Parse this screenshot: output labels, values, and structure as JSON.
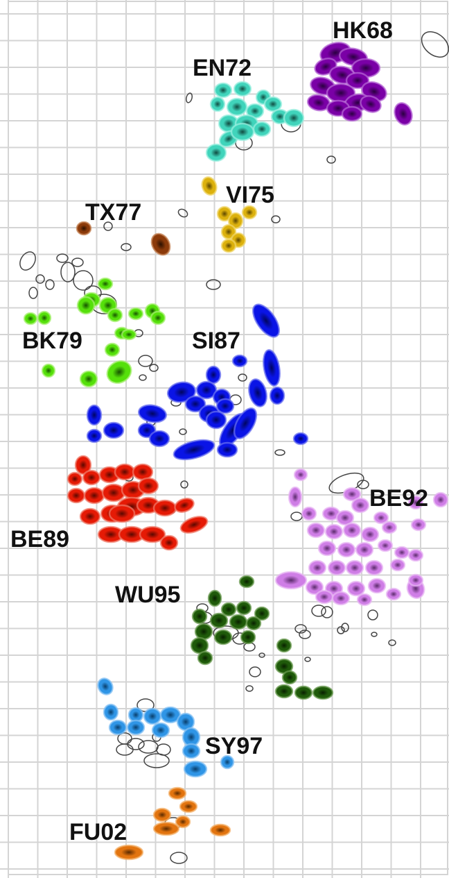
{
  "clusters": [
    {
      "key": "hk68",
      "label": "HK68",
      "color": "#7a00a6",
      "dark": "#2a0040",
      "halo": "#b66ad6"
    },
    {
      "key": "en72",
      "label": "EN72",
      "color": "#40d4bb",
      "dark": "#0f4a40",
      "halo": "#9befe0"
    },
    {
      "key": "vi75",
      "label": "VI75",
      "color": "#dcb10d",
      "dark": "#5a4500",
      "halo": "#efd66a"
    },
    {
      "key": "tx77",
      "label": "TX77",
      "color": "#8b3a0a",
      "dark": "#2b1000",
      "halo": "#c07a4a"
    },
    {
      "key": "bk79",
      "label": "BK79",
      "color": "#55e00a",
      "dark": "#155000",
      "halo": "#a6f070"
    },
    {
      "key": "si87",
      "label": "SI87",
      "color": "#0a14e6",
      "dark": "#000560",
      "halo": "#6a70f0"
    },
    {
      "key": "be89",
      "label": "BE89",
      "color": "#e51a05",
      "dark": "#5a0800",
      "halo": "#f07a6a"
    },
    {
      "key": "be92",
      "label": "BE92",
      "color": "#cf7ee6",
      "dark": "#5a2a6a",
      "halo": "#e8b8f3"
    },
    {
      "key": "wu95",
      "label": "WU95",
      "color": "#1f5a0a",
      "dark": "#081f00",
      "halo": "#6a9a50"
    },
    {
      "key": "sy97",
      "label": "SY97",
      "color": "#2f95e6",
      "dark": "#083d6a",
      "halo": "#86c2f3"
    },
    {
      "key": "fu02",
      "label": "FU02",
      "color": "#e2740f",
      "dark": "#5a2a00",
      "halo": "#f3b06a"
    }
  ],
  "style": {
    "grid_color": "#d4d4d4",
    "background": "#ffffff",
    "outline_color": "#444444",
    "label_color": "#111111"
  }
}
